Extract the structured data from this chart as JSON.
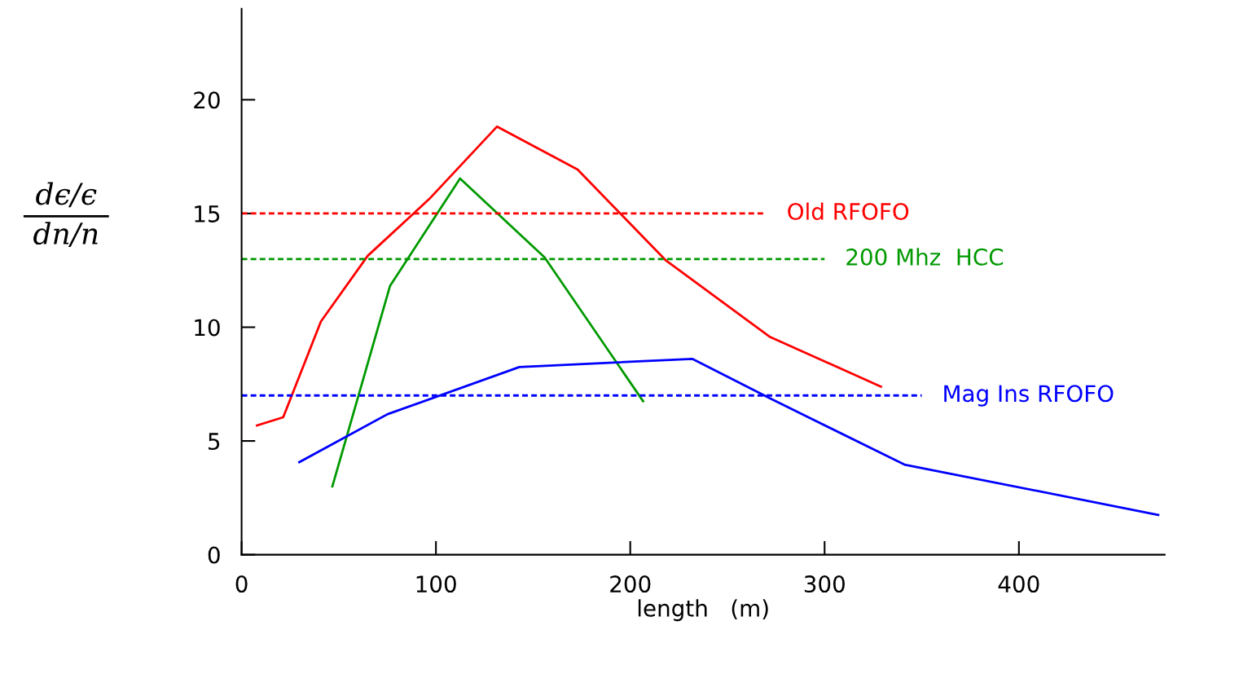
{
  "chart_data": {
    "type": "line",
    "xlabel": "length   (m)",
    "ylabel": "dϵ/ϵ\ndn/n",
    "xlim": [
      0,
      475
    ],
    "xticks": [
      0,
      100,
      200,
      300,
      400
    ],
    "ylim": [
      0,
      24
    ],
    "yticks": [
      0,
      5,
      10,
      15,
      20
    ],
    "grid": false,
    "legend": false,
    "marker": "none",
    "series": [
      {
        "color": "#ff0000",
        "x": [
          7.9,
          21.4,
          40.8,
          64.9,
          96.6,
          131.4,
          172.9,
          218.4,
          272,
          329
        ],
        "values": [
          5.68,
          6.04,
          10.25,
          13.14,
          15.64,
          18.82,
          16.93,
          12.93,
          9.57,
          7.39
        ]
      },
      {
        "color": "#009900",
        "x": [
          46.7,
          76.4,
          112.4,
          155.9,
          206.6
        ],
        "values": [
          3.0,
          11.82,
          16.54,
          13.07,
          6.75
        ]
      },
      {
        "color": "#0000ff",
        "x": [
          29.7,
          75.2,
          142.9,
          231.9,
          271.5,
          341.1,
          471.7
        ],
        "values": [
          4.07,
          6.18,
          8.25,
          8.61,
          6.89,
          3.96,
          1.75
        ]
      },
      {
        "name": "Old RFOFO",
        "color": "#ff0000",
        "line_style": "dashed",
        "x": [
          0,
          270
        ],
        "values": [
          15,
          15
        ]
      },
      {
        "name": "200 Mhz  HCC",
        "color": "#009900",
        "line_style": "dashed",
        "x": [
          0,
          300
        ],
        "values": [
          13,
          13
        ]
      },
      {
        "name": "Mag Ins RFOFO",
        "color": "#0000ff",
        "line_style": "dashed",
        "x": [
          0,
          350
        ],
        "values": [
          7,
          7
        ]
      }
    ]
  }
}
